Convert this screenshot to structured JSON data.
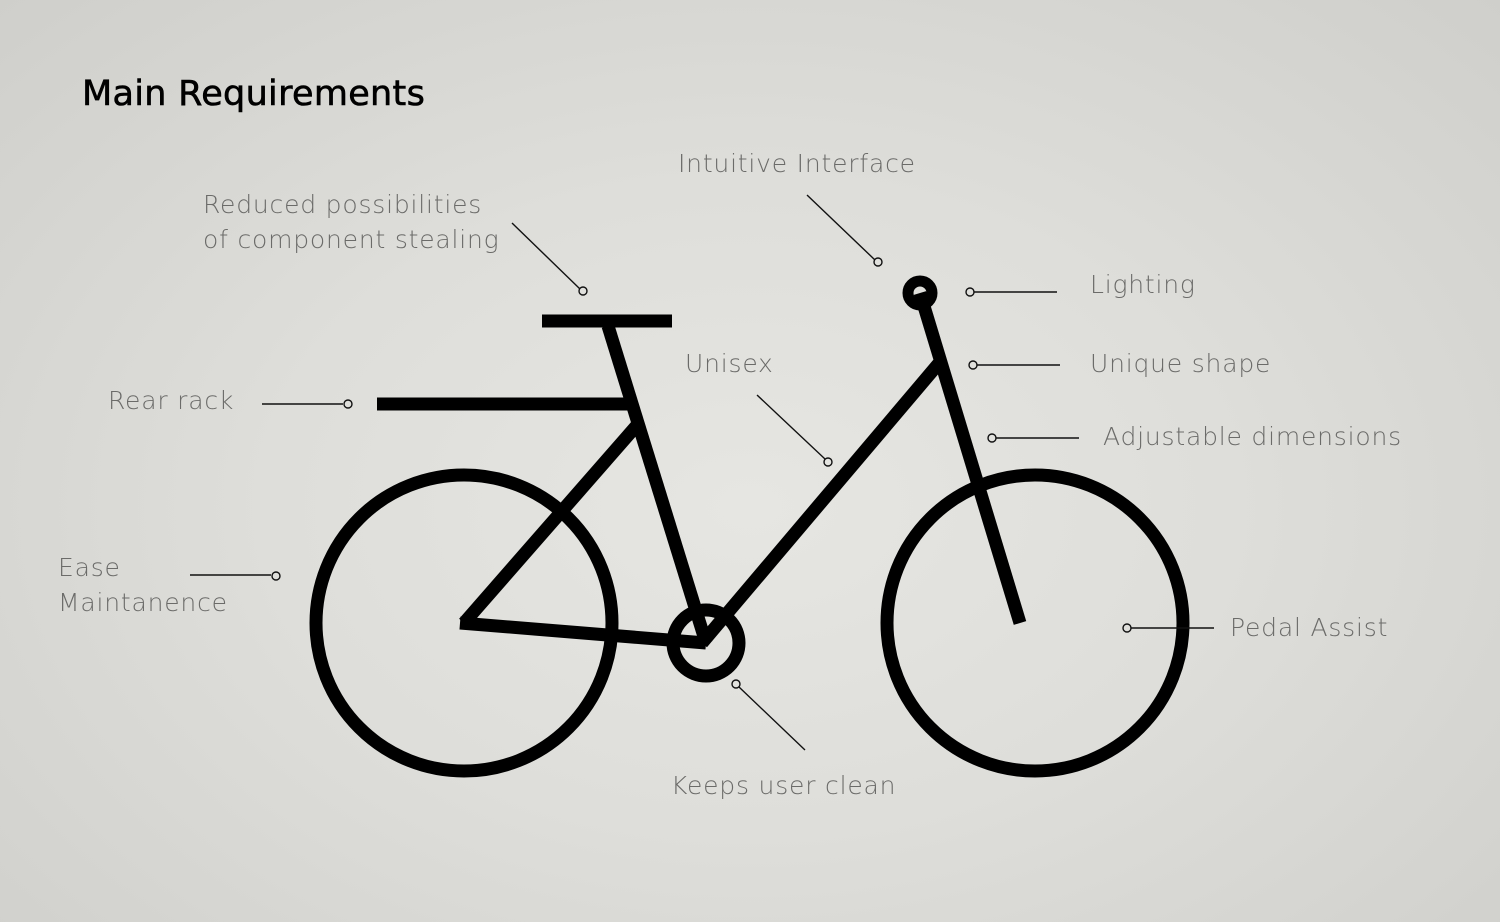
{
  "title": "Main Requirements",
  "labels": {
    "stealing": [
      "Reduced possibilities",
      "of component stealing"
    ],
    "interface": "Intuitive Interface",
    "lighting": "Lighting",
    "unique": "Unique shape",
    "unisex": "Unisex",
    "adjustable": "Adjustable dimensions",
    "rear_rack": "Rear rack",
    "maintenance": [
      "Ease",
      "Maintanence"
    ],
    "pedal_assist": "Pedal Assist",
    "clean": "Keeps user clean"
  },
  "colors": {
    "ink": "#000000",
    "label": "#6b6b69",
    "leader": "#111111"
  }
}
